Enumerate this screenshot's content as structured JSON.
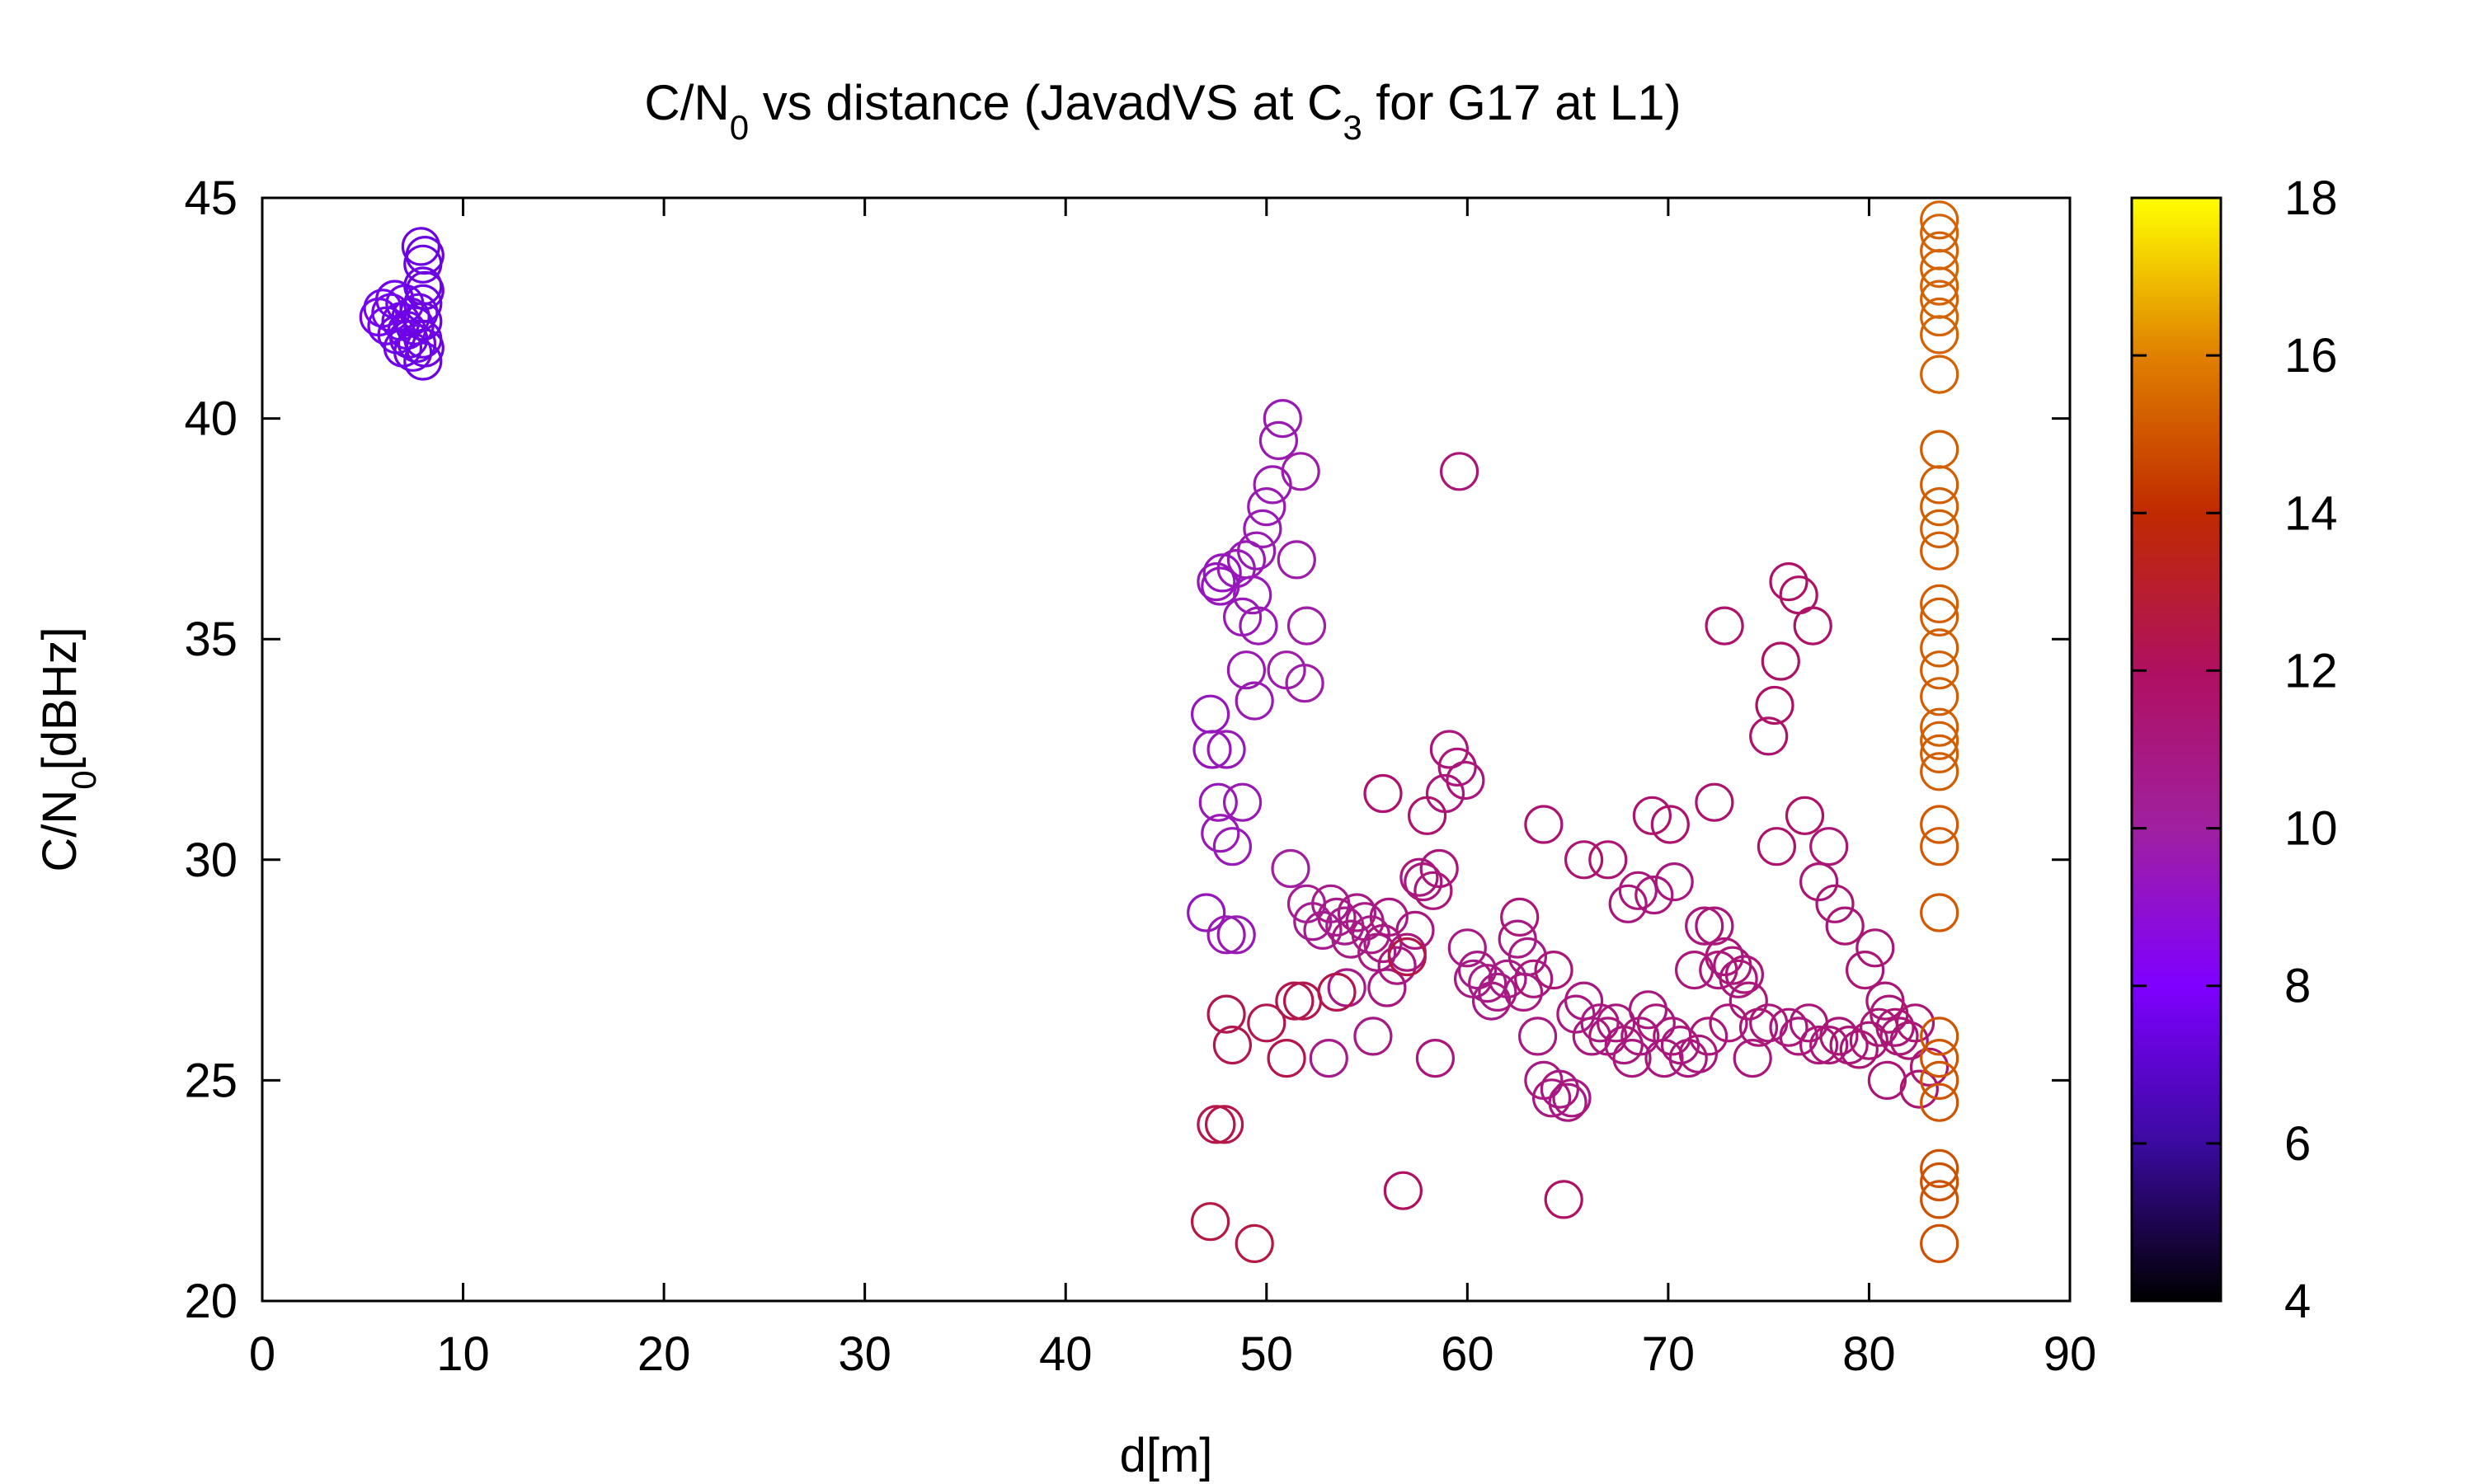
{
  "chart_data": {
    "type": "scatter",
    "title": {
      "prefix": "C/N",
      "sub1": "0",
      "middle": " vs distance (JavadVS at C",
      "sub2": "3",
      "suffix": " for G17 at L1)"
    },
    "xlabel": "d[m]",
    "ylabel": {
      "main": "C/N",
      "sub": "0",
      "rest": "[dBHz]"
    },
    "xlim": [
      0,
      90
    ],
    "ylim": [
      20,
      45
    ],
    "x_ticks": [
      "0",
      "10",
      "20",
      "30",
      "40",
      "50",
      "60",
      "70",
      "80",
      "90"
    ],
    "y_ticks": [
      "20",
      "25",
      "30",
      "35",
      "40",
      "45"
    ],
    "colorbar": {
      "range": [
        4,
        18
      ],
      "ticks": [
        "4",
        "6",
        "8",
        "10",
        "12",
        "14",
        "16",
        "18"
      ],
      "palette": [
        "#000000",
        "#3b0aa0",
        "#7f00ff",
        "#a020a0",
        "#b01060",
        "#c02a00",
        "#e08000",
        "#ffff00"
      ]
    },
    "marker": "open-circle",
    "grid": false,
    "legend": "none",
    "points": [
      [
        5.8,
        42.3,
        7.7
      ],
      [
        6.0,
        42.5,
        7.7
      ],
      [
        6.2,
        42.1,
        7.7
      ],
      [
        6.4,
        42.4,
        7.7
      ],
      [
        6.6,
        42.7,
        7.6
      ],
      [
        6.7,
        41.9,
        7.6
      ],
      [
        6.9,
        42.2,
        7.6
      ],
      [
        7.0,
        41.6,
        7.6
      ],
      [
        7.1,
        42.6,
        7.6
      ],
      [
        7.2,
        42.0,
        7.6
      ],
      [
        7.3,
        41.8,
        7.5
      ],
      [
        7.4,
        42.3,
        7.5
      ],
      [
        7.5,
        41.5,
        7.5
      ],
      [
        7.6,
        42.1,
        7.5
      ],
      [
        7.7,
        41.7,
        7.5
      ],
      [
        7.8,
        42.4,
        7.5
      ],
      [
        7.9,
        43.9,
        7.4
      ],
      [
        8.0,
        43.5,
        7.4
      ],
      [
        8.0,
        43.0,
        7.4
      ],
      [
        8.0,
        42.6,
        7.4
      ],
      [
        8.0,
        42.2,
        7.4
      ],
      [
        8.0,
        41.8,
        7.4
      ],
      [
        8.0,
        41.3,
        7.4
      ],
      [
        8.1,
        43.7,
        7.4
      ],
      [
        8.1,
        42.9,
        7.4
      ],
      [
        8.1,
        41.6,
        7.4
      ],
      [
        50.8,
        40.0,
        9.6
      ],
      [
        50.6,
        39.5,
        9.6
      ],
      [
        50.3,
        38.5,
        9.6
      ],
      [
        50.0,
        38.0,
        9.6
      ],
      [
        49.8,
        37.5,
        9.6
      ],
      [
        51.7,
        38.8,
        9.8
      ],
      [
        49.5,
        37.0,
        9.6
      ],
      [
        49.0,
        36.8,
        9.5
      ],
      [
        48.5,
        36.6,
        9.5
      ],
      [
        47.8,
        36.5,
        9.4
      ],
      [
        47.5,
        36.3,
        9.4
      ],
      [
        47.7,
        36.2,
        9.4
      ],
      [
        51.5,
        36.8,
        9.8
      ],
      [
        49.3,
        36.0,
        9.5
      ],
      [
        48.8,
        35.5,
        9.5
      ],
      [
        49.6,
        35.3,
        9.6
      ],
      [
        52.0,
        35.3,
        9.9
      ],
      [
        49.0,
        34.3,
        9.6
      ],
      [
        51.0,
        34.3,
        9.8
      ],
      [
        51.9,
        34.0,
        9.9
      ],
      [
        49.4,
        33.6,
        9.6
      ],
      [
        47.2,
        33.3,
        9.4
      ],
      [
        47.3,
        32.5,
        9.4
      ],
      [
        48.0,
        32.5,
        9.5
      ],
      [
        47.6,
        31.3,
        9.5
      ],
      [
        48.8,
        31.3,
        9.6
      ],
      [
        47.7,
        30.6,
        9.5
      ],
      [
        48.3,
        30.3,
        9.5
      ],
      [
        51.2,
        29.8,
        10.0
      ],
      [
        47.0,
        28.8,
        9.4
      ],
      [
        48.0,
        28.3,
        9.6
      ],
      [
        48.5,
        28.3,
        9.6
      ],
      [
        52.0,
        29.0,
        10.4
      ],
      [
        52.3,
        28.6,
        10.5
      ],
      [
        52.8,
        28.4,
        10.6
      ],
      [
        53.2,
        29.0,
        10.6
      ],
      [
        53.5,
        28.7,
        10.7
      ],
      [
        53.9,
        28.5,
        10.7
      ],
      [
        54.2,
        28.2,
        10.8
      ],
      [
        54.5,
        28.8,
        10.8
      ],
      [
        54.9,
        28.6,
        10.8
      ],
      [
        55.2,
        28.3,
        10.9
      ],
      [
        55.5,
        27.9,
        10.9
      ],
      [
        55.8,
        28.1,
        10.9
      ],
      [
        56.1,
        28.7,
        11.0
      ],
      [
        56.5,
        27.6,
        11.0
      ],
      [
        57.0,
        27.9,
        11.1
      ],
      [
        57.4,
        28.4,
        11.1
      ],
      [
        57.8,
        29.5,
        11.1
      ],
      [
        58.3,
        29.3,
        11.2
      ],
      [
        58.6,
        29.8,
        11.2
      ],
      [
        58.9,
        31.5,
        11.2
      ],
      [
        59.1,
        32.5,
        11.2
      ],
      [
        59.5,
        32.1,
        11.2
      ],
      [
        59.9,
        31.8,
        11.2
      ],
      [
        57.6,
        29.6,
        11.1
      ],
      [
        56.0,
        27.1,
        11.0
      ],
      [
        54.0,
        27.1,
        10.8
      ],
      [
        53.1,
        25.5,
        10.7
      ],
      [
        55.3,
        26.0,
        10.9
      ],
      [
        58.4,
        25.5,
        11.2
      ],
      [
        59.6,
        38.8,
        11.3
      ],
      [
        55.8,
        31.5,
        11.6
      ],
      [
        58.0,
        31.0,
        11.6
      ],
      [
        60.0,
        28.0,
        10.8
      ],
      [
        60.5,
        27.5,
        10.8
      ],
      [
        61.0,
        27.2,
        10.8
      ],
      [
        61.5,
        27.0,
        10.8
      ],
      [
        62.0,
        27.3,
        10.9
      ],
      [
        62.5,
        28.2,
        10.9
      ],
      [
        63.0,
        27.8,
        10.9
      ],
      [
        63.5,
        26.0,
        10.9
      ],
      [
        63.8,
        25.0,
        10.9
      ],
      [
        64.2,
        24.6,
        11.0
      ],
      [
        64.6,
        24.8,
        11.0
      ],
      [
        65.0,
        24.5,
        11.0
      ],
      [
        65.4,
        26.5,
        11.0
      ],
      [
        65.8,
        26.8,
        11.0
      ],
      [
        66.2,
        26.0,
        11.0
      ],
      [
        66.6,
        26.3,
        11.0
      ],
      [
        67.0,
        26.0,
        11.1
      ],
      [
        67.4,
        26.3,
        11.1
      ],
      [
        67.8,
        25.8,
        11.1
      ],
      [
        68.2,
        25.5,
        11.1
      ],
      [
        68.6,
        26.0,
        11.1
      ],
      [
        69.0,
        26.6,
        11.1
      ],
      [
        69.4,
        26.3,
        11.1
      ],
      [
        69.8,
        25.5,
        11.1
      ],
      [
        70.2,
        26.0,
        11.1
      ],
      [
        70.6,
        25.8,
        11.1
      ],
      [
        71.0,
        25.5,
        11.1
      ],
      [
        71.5,
        25.6,
        11.2
      ],
      [
        72.0,
        26.0,
        11.2
      ],
      [
        72.5,
        27.5,
        11.2
      ],
      [
        73.0,
        26.3,
        11.2
      ],
      [
        73.5,
        27.3,
        11.2
      ],
      [
        74.0,
        26.8,
        11.2
      ],
      [
        74.5,
        26.2,
        11.2
      ],
      [
        75.0,
        26.3,
        11.2
      ],
      [
        76.0,
        26.2,
        11.2
      ],
      [
        76.5,
        26.0,
        11.2
      ],
      [
        77.0,
        26.3,
        11.2
      ],
      [
        77.5,
        25.8,
        11.2
      ],
      [
        78.0,
        25.8,
        11.2
      ],
      [
        78.5,
        26.0,
        11.3
      ],
      [
        79.0,
        25.8,
        11.3
      ],
      [
        79.5,
        25.7,
        11.3
      ],
      [
        80.0,
        25.9,
        11.3
      ],
      [
        80.5,
        26.2,
        11.3
      ],
      [
        81.0,
        26.5,
        11.3
      ],
      [
        81.5,
        26.0,
        11.3
      ],
      [
        82.0,
        25.9,
        11.3
      ],
      [
        82.5,
        24.8,
        11.4
      ],
      [
        83.0,
        25.3,
        11.4
      ],
      [
        60.3,
        27.3,
        10.8
      ],
      [
        61.2,
        26.8,
        10.8
      ],
      [
        62.8,
        27.0,
        10.9
      ],
      [
        65.2,
        24.6,
        11.0
      ],
      [
        68.0,
        29.0,
        11.1
      ],
      [
        68.5,
        29.3,
        11.1
      ],
      [
        69.3,
        29.2,
        11.1
      ],
      [
        70.3,
        29.5,
        11.1
      ],
      [
        71.3,
        27.5,
        11.2
      ],
      [
        71.8,
        28.5,
        11.2
      ],
      [
        72.3,
        28.5,
        11.2
      ],
      [
        72.8,
        27.8,
        11.2
      ],
      [
        73.2,
        27.6,
        11.2
      ],
      [
        73.8,
        27.4,
        11.2
      ],
      [
        74.2,
        25.5,
        11.2
      ],
      [
        77.5,
        29.5,
        11.3
      ],
      [
        78.0,
        30.3,
        11.3
      ],
      [
        78.3,
        29.0,
        11.3
      ],
      [
        78.8,
        28.5,
        11.3
      ],
      [
        79.8,
        27.5,
        11.3
      ],
      [
        80.3,
        28.0,
        11.3
      ],
      [
        80.8,
        26.8,
        11.3
      ],
      [
        81.3,
        26.2,
        11.3
      ],
      [
        80.9,
        25.0,
        11.3
      ],
      [
        82.3,
        26.3,
        11.4
      ],
      [
        63.8,
        30.8,
        11.5
      ],
      [
        65.8,
        30.0,
        11.5
      ],
      [
        67.0,
        30.0,
        11.5
      ],
      [
        69.2,
        31.0,
        11.6
      ],
      [
        70.1,
        30.8,
        11.6
      ],
      [
        72.3,
        31.3,
        11.6
      ],
      [
        72.8,
        35.3,
        11.7
      ],
      [
        75.0,
        32.8,
        11.7
      ],
      [
        75.3,
        33.5,
        11.8
      ],
      [
        75.6,
        34.5,
        11.8
      ],
      [
        76.0,
        36.3,
        11.8
      ],
      [
        76.5,
        36.0,
        11.8
      ],
      [
        77.2,
        35.3,
        11.8
      ],
      [
        75.4,
        30.3,
        11.7
      ],
      [
        76.8,
        31.0,
        11.8
      ],
      [
        62.6,
        28.7,
        11.2
      ],
      [
        63.3,
        27.3,
        11.2
      ],
      [
        64.3,
        27.5,
        11.3
      ],
      [
        64.8,
        22.3,
        11.9
      ],
      [
        56.8,
        22.5,
        12.0
      ],
      [
        51.0,
        25.5,
        12.4
      ],
      [
        51.4,
        26.8,
        12.4
      ],
      [
        51.8,
        26.8,
        12.4
      ],
      [
        50.0,
        26.3,
        12.4
      ],
      [
        48.0,
        26.5,
        12.4
      ],
      [
        48.3,
        25.8,
        12.4
      ],
      [
        47.5,
        24.0,
        12.5
      ],
      [
        47.9,
        24.0,
        12.5
      ],
      [
        47.2,
        21.8,
        12.6
      ],
      [
        49.4,
        21.3,
        12.6
      ],
      [
        53.5,
        27.0,
        12.4
      ],
      [
        57.0,
        27.8,
        12.5
      ],
      [
        83.5,
        44.5,
        15.3
      ],
      [
        83.5,
        44.2,
        15.3
      ],
      [
        83.5,
        43.8,
        15.3
      ],
      [
        83.5,
        43.4,
        15.3
      ],
      [
        83.5,
        43.0,
        15.3
      ],
      [
        83.5,
        42.7,
        15.3
      ],
      [
        83.5,
        42.3,
        15.3
      ],
      [
        83.5,
        41.9,
        15.3
      ],
      [
        83.5,
        41.0,
        15.3
      ],
      [
        83.5,
        39.3,
        15.2
      ],
      [
        83.5,
        38.5,
        15.2
      ],
      [
        83.5,
        38.0,
        15.2
      ],
      [
        83.5,
        37.5,
        15.2
      ],
      [
        83.5,
        37.0,
        15.2
      ],
      [
        83.5,
        35.8,
        15.2
      ],
      [
        83.5,
        35.5,
        15.2
      ],
      [
        83.5,
        34.8,
        15.2
      ],
      [
        83.5,
        34.3,
        15.2
      ],
      [
        83.5,
        33.7,
        15.2
      ],
      [
        83.5,
        33.0,
        15.2
      ],
      [
        83.5,
        32.7,
        15.2
      ],
      [
        83.5,
        32.4,
        15.2
      ],
      [
        83.5,
        32.0,
        15.2
      ],
      [
        83.5,
        30.8,
        15.1
      ],
      [
        83.5,
        30.3,
        15.1
      ],
      [
        83.5,
        28.8,
        15.1
      ],
      [
        83.5,
        26.0,
        15.0
      ],
      [
        83.5,
        25.5,
        15.0
      ],
      [
        83.5,
        25.0,
        15.0
      ],
      [
        83.5,
        24.5,
        15.0
      ],
      [
        83.5,
        23.0,
        14.9
      ],
      [
        83.5,
        22.7,
        14.9
      ],
      [
        83.5,
        22.3,
        14.9
      ],
      [
        83.5,
        21.3,
        14.9
      ]
    ]
  }
}
